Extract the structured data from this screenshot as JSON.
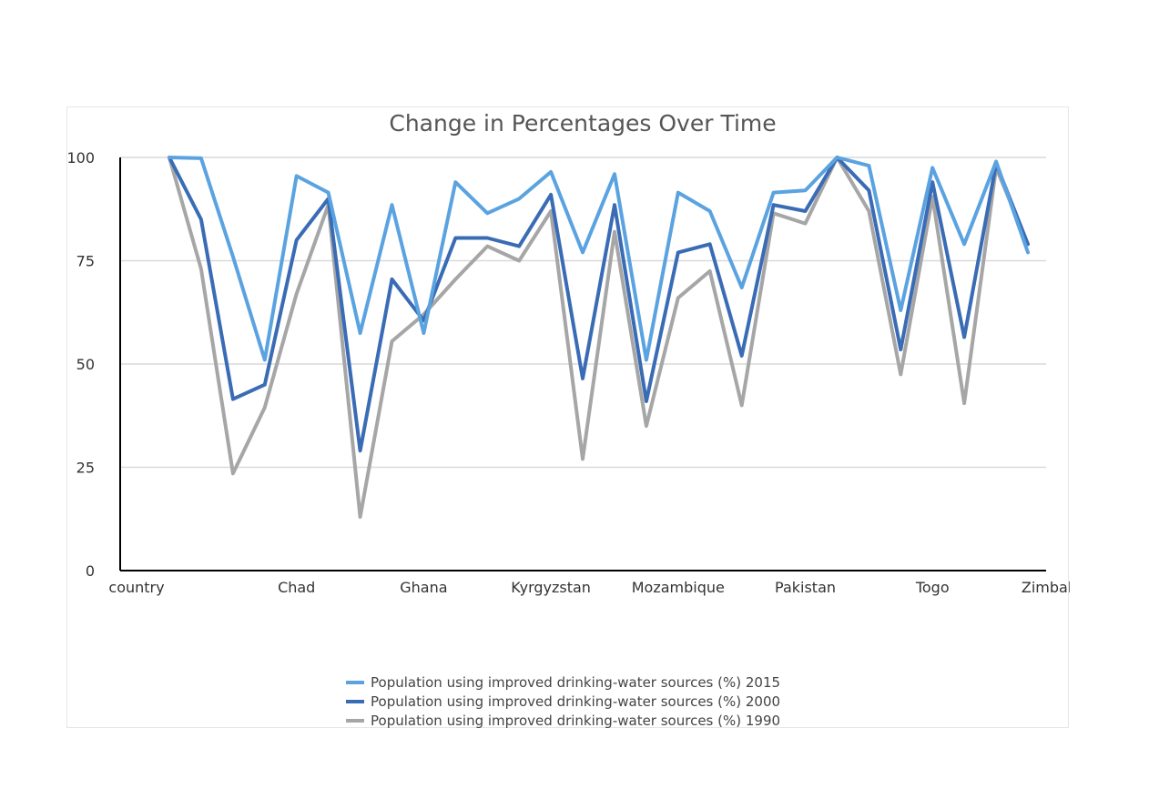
{
  "chart_data": {
    "type": "line",
    "title": "Change in Percentages Over Time",
    "xlabel": "",
    "ylabel": "",
    "ylim": [
      0,
      100
    ],
    "yticks": [
      0,
      25,
      50,
      75,
      100
    ],
    "grid": true,
    "legend_position": "bottom",
    "x_tick_labels": [
      "country",
      "Chad",
      "Ghana",
      "Kyrgyzstan",
      "Mozambique",
      "Pakistan",
      "Togo",
      "Zimbabwe"
    ],
    "series": [
      {
        "name": "Population using improved drinking-water sources (%) 2015",
        "color": "#5ba3e0",
        "values": [
          100,
          99.8,
          76,
          51,
          95.5,
          91.5,
          57.5,
          88.5,
          57.5,
          94,
          86.5,
          90,
          96.5,
          77,
          96,
          51,
          91.5,
          87,
          68.5,
          91.5,
          92,
          100,
          98,
          63,
          97.5,
          79,
          99,
          77
        ]
      },
      {
        "name": "Population using improved drinking-water sources (%) 2000",
        "color": "#3a6cb5",
        "values": [
          100,
          85,
          41.5,
          45,
          80,
          90,
          29,
          70.5,
          60.5,
          80.5,
          80.5,
          78.5,
          91,
          46.5,
          88.5,
          41,
          77,
          79,
          52,
          88.5,
          87,
          100,
          92,
          53.5,
          94,
          56.5,
          98.5,
          79
        ]
      },
      {
        "name": "Population using improved drinking-water sources (%) 1990",
        "color": "#a6a6a6",
        "values": [
          100,
          73,
          23.5,
          39.5,
          67,
          88.5,
          13,
          55.5,
          62,
          70.5,
          78.5,
          75,
          87,
          27,
          82,
          35,
          66,
          72.5,
          40,
          86.5,
          84,
          100,
          87,
          47.5,
          90.5,
          40.5,
          97.5,
          79
        ]
      }
    ]
  }
}
